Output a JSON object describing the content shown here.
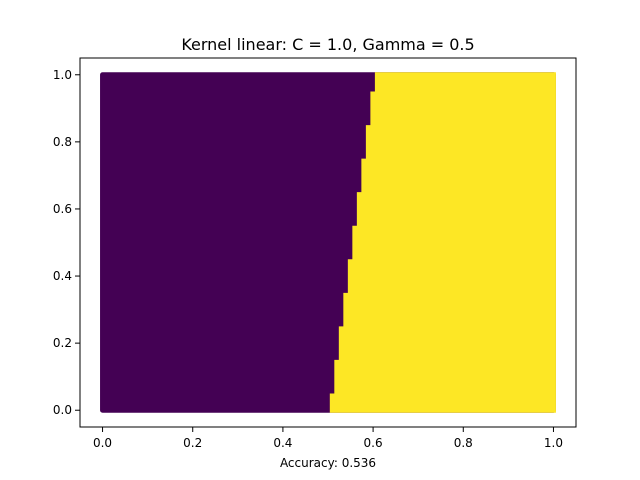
{
  "chart_data": {
    "type": "scatter",
    "title": "Kernel linear: C = 1.0, Gamma = 0.5",
    "xlabel": "Accuracy: 0.536",
    "ylabel": "",
    "xlim": [
      -0.05,
      1.05
    ],
    "ylim": [
      -0.05,
      1.05
    ],
    "xticks": [
      0.0,
      0.2,
      0.4,
      0.6,
      0.8,
      1.0
    ],
    "yticks": [
      0.0,
      0.2,
      0.4,
      0.6,
      0.8,
      1.0
    ],
    "xtick_labels": [
      "0.0",
      "0.2",
      "0.4",
      "0.6",
      "0.8",
      "1.0"
    ],
    "ytick_labels": [
      "0.0",
      "0.2",
      "0.4",
      "0.6",
      "0.8",
      "1.0"
    ],
    "grid": false,
    "legend": "none",
    "colors": {
      "class_0": "#440154",
      "class_1": "#fde725"
    },
    "classes": [
      {
        "label": 0,
        "color": "#440154",
        "region": "x below decision boundary"
      },
      {
        "label": 1,
        "color": "#fde725",
        "region": "x above decision boundary"
      }
    ],
    "decision_boundary": [
      {
        "y": 0.0,
        "x": 0.504
      },
      {
        "y": 0.1,
        "x": 0.514
      },
      {
        "y": 0.2,
        "x": 0.524
      },
      {
        "y": 0.3,
        "x": 0.534
      },
      {
        "y": 0.4,
        "x": 0.544
      },
      {
        "y": 0.5,
        "x": 0.554
      },
      {
        "y": 0.6,
        "x": 0.564
      },
      {
        "y": 0.7,
        "x": 0.574
      },
      {
        "y": 0.8,
        "x": 0.584
      },
      {
        "y": 0.9,
        "x": 0.594
      },
      {
        "y": 1.0,
        "x": 0.604
      }
    ],
    "grid_points_x": [
      0.0,
      1.0
    ],
    "grid_points_y": [
      0.0,
      1.0
    ]
  }
}
